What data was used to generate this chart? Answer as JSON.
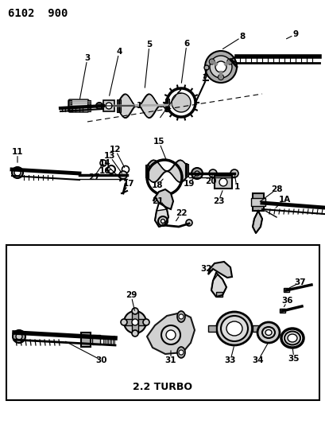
{
  "title": "6102  900",
  "bg_color": "#ffffff",
  "line_color": "#000000",
  "text_color": "#000000",
  "turbo_label": "2.2 TURBO",
  "figsize": [
    4.1,
    5.33
  ],
  "dpi": 100,
  "gray1": "#888888",
  "gray2": "#aaaaaa",
  "gray3": "#cccccc",
  "gray4": "#dddddd",
  "dark": "#444444"
}
